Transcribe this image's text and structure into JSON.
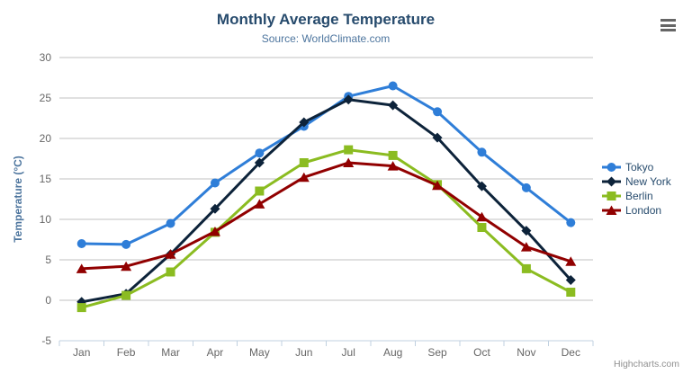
{
  "chart_data": {
    "type": "line",
    "title": "Monthly Average Temperature",
    "subtitle": "Source: WorldClimate.com",
    "categories": [
      "Jan",
      "Feb",
      "Mar",
      "Apr",
      "May",
      "Jun",
      "Jul",
      "Aug",
      "Sep",
      "Oct",
      "Nov",
      "Dec"
    ],
    "xlabel": "",
    "ylabel": "Temperature (°C)",
    "ylim": [
      -5,
      30
    ],
    "ytick_interval": 5,
    "grid": true,
    "legend_position": "right",
    "series": [
      {
        "name": "Tokyo",
        "color": "#2f7ed8",
        "marker": "circle",
        "values": [
          7.0,
          6.9,
          9.5,
          14.5,
          18.2,
          21.5,
          25.2,
          26.5,
          23.3,
          18.3,
          13.9,
          9.6
        ]
      },
      {
        "name": "New York",
        "color": "#0d233a",
        "marker": "diamond",
        "values": [
          -0.2,
          0.8,
          5.7,
          11.3,
          17.0,
          22.0,
          24.8,
          24.1,
          20.1,
          14.1,
          8.6,
          2.5
        ]
      },
      {
        "name": "Berlin",
        "color": "#8bbc21",
        "marker": "square",
        "values": [
          -0.9,
          0.6,
          3.5,
          8.4,
          13.5,
          17.0,
          18.6,
          17.9,
          14.3,
          9.0,
          3.9,
          1.0
        ]
      },
      {
        "name": "London",
        "color": "#910000",
        "marker": "triangle",
        "values": [
          3.9,
          4.2,
          5.7,
          8.5,
          11.9,
          15.2,
          17.0,
          16.6,
          14.2,
          10.3,
          6.6,
          4.8
        ]
      }
    ]
  },
  "credit": {
    "label": "Highcharts.com"
  },
  "export_menu": {
    "icon": "hamburger-icon"
  },
  "colors": {
    "title": "#274b6d",
    "subtitle": "#4d759e",
    "axis_title": "#4d759e",
    "axis_label": "#666666",
    "grid_line": "#c0c0c0",
    "axis_line": "#c0d0e0",
    "legend_text": "#274b6d",
    "credit": "#909090",
    "menu_icon": "#666666",
    "background": "#ffffff"
  }
}
